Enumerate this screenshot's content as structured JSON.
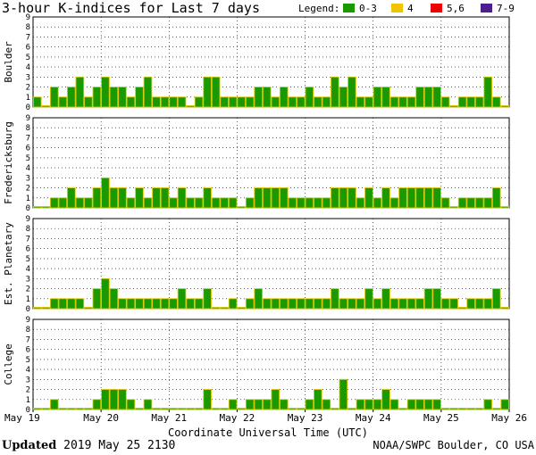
{
  "title": "3-hour K-indices for Last 7 days",
  "legend": {
    "label": "Legend:",
    "items": [
      {
        "text": "0-3",
        "color": "#1a9900"
      },
      {
        "text": "4",
        "color": "#f0c400"
      },
      {
        "text": "5,6",
        "color": "#ee0000"
      },
      {
        "text": "7-9",
        "color": "#4b1f8e"
      }
    ]
  },
  "footer": {
    "updated_label": "Updated",
    "updated_value": "2019 May 25 2130",
    "credit": "NOAA/SWPC Boulder, CO USA"
  },
  "chart_data": {
    "type": "bar",
    "xlabel": "Coordinate Universal Time (UTC)",
    "x_ticks": [
      "May 19",
      "May 20",
      "May 21",
      "May 22",
      "May 23",
      "May 24",
      "May 25",
      "May 26"
    ],
    "ylim": [
      0,
      9
    ],
    "y_ticks": [
      0,
      1,
      2,
      3,
      4,
      5,
      6,
      7,
      8,
      9
    ],
    "bar_color": "#1a9900",
    "bar_outline": "#d8c800",
    "panels": [
      {
        "name": "Boulder",
        "values": [
          1,
          0,
          2,
          1,
          2,
          3,
          1,
          2,
          3,
          2,
          2,
          1,
          2,
          3,
          1,
          1,
          1,
          1,
          0,
          1,
          3,
          3,
          1,
          1,
          1,
          1,
          2,
          2,
          1,
          2,
          1,
          1,
          2,
          1,
          1,
          3,
          2,
          3,
          1,
          1,
          2,
          2,
          1,
          1,
          1,
          2,
          2,
          2,
          1,
          0,
          1,
          1,
          1,
          3,
          1,
          0
        ]
      },
      {
        "name": "Fredericksburg",
        "values": [
          0,
          0,
          1,
          1,
          2,
          1,
          1,
          2,
          3,
          2,
          2,
          1,
          2,
          1,
          2,
          2,
          1,
          2,
          1,
          1,
          2,
          1,
          1,
          1,
          0,
          1,
          2,
          2,
          2,
          2,
          1,
          1,
          1,
          1,
          1,
          2,
          2,
          2,
          1,
          2,
          1,
          2,
          1,
          2,
          2,
          2,
          2,
          2,
          1,
          0,
          1,
          1,
          1,
          1,
          2,
          0
        ]
      },
      {
        "name": "Est. Planetary",
        "values": [
          0,
          0,
          1,
          1,
          1,
          1,
          0,
          2,
          3,
          2,
          1,
          1,
          1,
          1,
          1,
          1,
          1,
          2,
          1,
          1,
          2,
          0,
          0,
          1,
          0,
          1,
          2,
          1,
          1,
          1,
          1,
          1,
          1,
          1,
          1,
          2,
          1,
          1,
          1,
          2,
          1,
          2,
          1,
          1,
          1,
          1,
          2,
          2,
          1,
          1,
          0,
          1,
          1,
          1,
          2,
          0
        ]
      },
      {
        "name": "College",
        "values": [
          0,
          0,
          1,
          0,
          0,
          0,
          0,
          1,
          2,
          2,
          2,
          1,
          0,
          1,
          0,
          0,
          0,
          0,
          0,
          0,
          2,
          0,
          0,
          1,
          0,
          1,
          1,
          1,
          2,
          1,
          0,
          0,
          1,
          2,
          1,
          0,
          3,
          0,
          1,
          1,
          1,
          2,
          1,
          0,
          1,
          1,
          1,
          1,
          0,
          0,
          0,
          0,
          0,
          1,
          0,
          1
        ]
      }
    ]
  }
}
